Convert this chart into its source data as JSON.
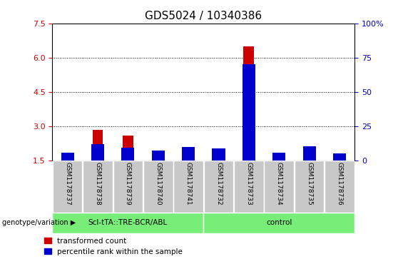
{
  "title": "GDS5024 / 10340386",
  "samples": [
    "GSM1178737",
    "GSM1178738",
    "GSM1178739",
    "GSM1178740",
    "GSM1178741",
    "GSM1178732",
    "GSM1178733",
    "GSM1178734",
    "GSM1178735",
    "GSM1178736"
  ],
  "transformed_count": [
    1.55,
    2.85,
    2.6,
    1.75,
    1.8,
    1.85,
    6.5,
    1.65,
    1.9,
    1.6
  ],
  "percentile_rank": [
    5.5,
    12.0,
    9.5,
    7.5,
    10.0,
    9.0,
    70.0,
    6.0,
    10.5,
    5.0
  ],
  "groups": [
    "Scl-tTA::TRE-BCR/ABL",
    "Scl-tTA::TRE-BCR/ABL",
    "Scl-tTA::TRE-BCR/ABL",
    "Scl-tTA::TRE-BCR/ABL",
    "Scl-tTA::TRE-BCR/ABL",
    "control",
    "control",
    "control",
    "control",
    "control"
  ],
  "group_labels": [
    "Scl-tTA::TRE-BCR/ABL",
    "control"
  ],
  "bar_color_red": "#CC0000",
  "bar_color_blue": "#0000CC",
  "y_min": 1.5,
  "y_max": 7.5,
  "y_ticks": [
    1.5,
    3.0,
    4.5,
    6.0,
    7.5
  ],
  "y2_ticks": [
    0,
    25,
    50,
    75,
    100
  ],
  "y2_tick_labels": [
    "0",
    "25",
    "50",
    "75",
    "100%"
  ],
  "bar_width": 0.35,
  "title_fontsize": 11,
  "tick_fontsize": 8,
  "label_fontsize": 8,
  "bg_plot": "#ffffff",
  "gray_box_color": "#c8c8c8",
  "green_color": "#78ee78",
  "legend_labels": [
    "transformed count",
    "percentile rank within the sample"
  ],
  "genotype_label": "genotype/variation",
  "percentile_scale": 100.0,
  "left_axis_color": "#CC0000",
  "right_axis_color": "#0000CC",
  "group1_count": 5,
  "group2_count": 5
}
